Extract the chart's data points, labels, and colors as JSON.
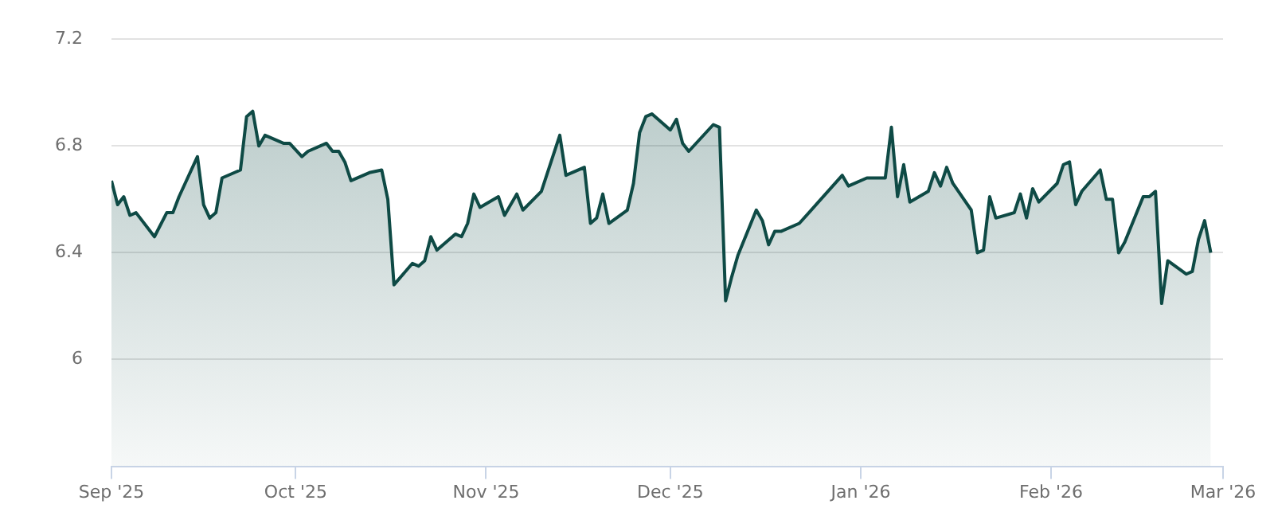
{
  "chart_data": {
    "type": "area",
    "color": "#0e4a45",
    "grid": "y",
    "marker": "none",
    "legend": false,
    "xlim": [
      "2025-09-01",
      "2026-03-01"
    ],
    "xticks": [
      {
        "value": "2025-09-01",
        "label": "Sep '25"
      },
      {
        "value": "2025-10-01",
        "label": "Oct '25"
      },
      {
        "value": "2025-11-01",
        "label": "Nov '25"
      },
      {
        "value": "2025-12-01",
        "label": "Dec '25"
      },
      {
        "value": "2026-01-01",
        "label": "Jan '26"
      },
      {
        "value": "2026-02-01",
        "label": "Feb '26"
      },
      {
        "value": "2026-03-01",
        "label": "Mar '26"
      }
    ],
    "ylim": [
      5.6,
      7.2
    ],
    "yticks": [
      {
        "value": 5.6,
        "label": null
      },
      6,
      6.4,
      6.8,
      7.2
    ],
    "x": [
      "2025-09-01",
      "2025-09-02",
      "2025-09-03",
      "2025-09-04",
      "2025-09-05",
      "2025-09-08",
      "2025-09-10",
      "2025-09-11",
      "2025-09-12",
      "2025-09-15",
      "2025-09-16",
      "2025-09-17",
      "2025-09-18",
      "2025-09-19",
      "2025-09-22",
      "2025-09-23",
      "2025-09-24",
      "2025-09-25",
      "2025-09-26",
      "2025-09-29",
      "2025-09-30",
      "2025-10-02",
      "2025-10-03",
      "2025-10-06",
      "2025-10-07",
      "2025-10-08",
      "2025-10-09",
      "2025-10-10",
      "2025-10-13",
      "2025-10-15",
      "2025-10-16",
      "2025-10-17",
      "2025-10-20",
      "2025-10-21",
      "2025-10-22",
      "2025-10-23",
      "2025-10-24",
      "2025-10-27",
      "2025-10-28",
      "2025-10-29",
      "2025-10-30",
      "2025-10-31",
      "2025-11-03",
      "2025-11-04",
      "2025-11-05",
      "2025-11-06",
      "2025-11-07",
      "2025-11-10",
      "2025-11-13",
      "2025-11-14",
      "2025-11-17",
      "2025-11-18",
      "2025-11-19",
      "2025-11-20",
      "2025-11-21",
      "2025-11-24",
      "2025-11-25",
      "2025-11-26",
      "2025-11-27",
      "2025-11-28",
      "2025-12-01",
      "2025-12-02",
      "2025-12-03",
      "2025-12-04",
      "2025-12-08",
      "2025-12-09",
      "2025-12-10",
      "2025-12-11",
      "2025-12-12",
      "2025-12-15",
      "2025-12-16",
      "2025-12-17",
      "2025-12-18",
      "2025-12-19",
      "2025-12-22",
      "2025-12-29",
      "2025-12-30",
      "2026-01-02",
      "2026-01-05",
      "2026-01-06",
      "2026-01-07",
      "2026-01-08",
      "2026-01-09",
      "2026-01-12",
      "2026-01-13",
      "2026-01-14",
      "2026-01-15",
      "2026-01-16",
      "2026-01-19",
      "2026-01-20",
      "2026-01-21",
      "2026-01-22",
      "2026-01-23",
      "2026-01-26",
      "2026-01-27",
      "2026-01-28",
      "2026-01-29",
      "2026-01-30",
      "2026-02-02",
      "2026-02-03",
      "2026-02-04",
      "2026-02-05",
      "2026-02-06",
      "2026-02-09",
      "2026-02-10",
      "2026-02-11",
      "2026-02-12",
      "2026-02-13",
      "2026-02-16",
      "2026-02-17",
      "2026-02-18",
      "2026-02-19",
      "2026-02-20",
      "2026-02-23",
      "2026-02-24",
      "2026-02-25",
      "2026-02-26",
      "2026-02-27"
    ],
    "values": [
      6.67,
      6.58,
      6.61,
      6.54,
      6.55,
      6.46,
      6.55,
      6.55,
      6.61,
      6.76,
      6.58,
      6.53,
      6.55,
      6.68,
      6.71,
      6.91,
      6.93,
      6.8,
      6.84,
      6.81,
      6.81,
      6.76,
      6.78,
      6.81,
      6.78,
      6.78,
      6.74,
      6.67,
      6.7,
      6.71,
      6.6,
      6.28,
      6.36,
      6.35,
      6.37,
      6.46,
      6.41,
      6.47,
      6.46,
      6.51,
      6.62,
      6.57,
      6.61,
      6.54,
      6.58,
      6.62,
      6.56,
      6.63,
      6.84,
      6.69,
      6.72,
      6.51,
      6.53,
      6.62,
      6.51,
      6.56,
      6.66,
      6.85,
      6.91,
      6.92,
      6.86,
      6.9,
      6.81,
      6.78,
      6.88,
      6.87,
      6.22,
      6.31,
      6.39,
      6.56,
      6.52,
      6.43,
      6.48,
      6.48,
      6.51,
      6.69,
      6.65,
      6.68,
      6.68,
      6.87,
      6.61,
      6.73,
      6.59,
      6.63,
      6.7,
      6.65,
      6.72,
      6.66,
      6.56,
      6.4,
      6.41,
      6.61,
      6.53,
      6.55,
      6.62,
      6.53,
      6.64,
      6.59,
      6.66,
      6.73,
      6.74,
      6.58,
      6.63,
      6.71,
      6.6,
      6.6,
      6.4,
      6.44,
      6.61,
      6.61,
      6.63,
      6.21,
      6.37,
      6.32,
      6.33,
      6.45,
      6.52,
      6.4
    ]
  }
}
